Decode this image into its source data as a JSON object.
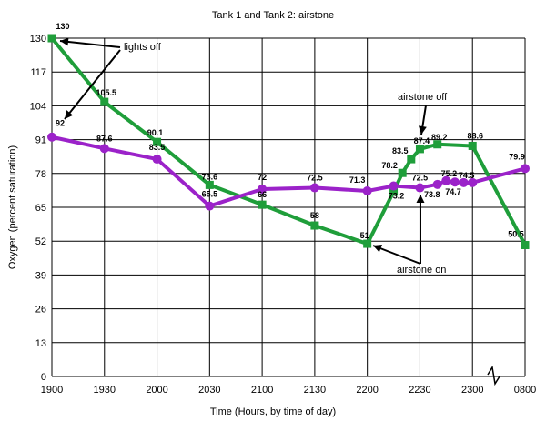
{
  "chart_data": {
    "type": "line",
    "title": "Tank 1 and Tank 2: airstone",
    "xlabel": "Time (Hours, by time of day)",
    "ylabel": "Oxygen (percent saturation)",
    "ylim": [
      0,
      130
    ],
    "yticks": [
      "0",
      "13",
      "26",
      "39",
      "52",
      "65",
      "78",
      "91",
      "104",
      "117",
      "130"
    ],
    "xticks": [
      "1900",
      "1930",
      "2000",
      "2030",
      "2100",
      "2130",
      "2200",
      "2230",
      "2300",
      "0800"
    ],
    "grid": true,
    "axis_break": "between 2300 and 0800",
    "series": [
      {
        "color": "#1f9e3a",
        "marker": "square",
        "points": [
          {
            "x": "1900",
            "y": 130,
            "label": "130"
          },
          {
            "x": "1930",
            "y": 105.5,
            "label": "105.5"
          },
          {
            "x": "2000",
            "y": 90.1,
            "label": "90.1"
          },
          {
            "x": "2030",
            "y": 73.6,
            "label": "73.6"
          },
          {
            "x": "2100",
            "y": 66,
            "label": "66"
          },
          {
            "x": "2130",
            "y": 58,
            "label": "58"
          },
          {
            "x": "2200",
            "y": 51,
            "label": "51"
          },
          {
            "x": "2215",
            "y": 71,
            "label": ""
          },
          {
            "x": "2220",
            "y": 78.2,
            "label": "78.2"
          },
          {
            "x": "2225",
            "y": 83.5,
            "label": "83.5"
          },
          {
            "x": "2230",
            "y": 87.4,
            "label": "87.4"
          },
          {
            "x": "2240",
            "y": 89.2,
            "label": "89.2"
          },
          {
            "x": "2300",
            "y": 88.6,
            "label": "88.6"
          },
          {
            "x": "0800",
            "y": 50.5,
            "label": "50.5"
          }
        ]
      },
      {
        "color": "#9b22c9",
        "marker": "circle",
        "points": [
          {
            "x": "1900",
            "y": 92,
            "label": "92"
          },
          {
            "x": "1930",
            "y": 87.6,
            "label": "87.6"
          },
          {
            "x": "2000",
            "y": 83.5,
            "label": "83.5"
          },
          {
            "x": "2030",
            "y": 65.5,
            "label": "65.5"
          },
          {
            "x": "2100",
            "y": 72,
            "label": "72"
          },
          {
            "x": "2130",
            "y": 72.5,
            "label": "72.5"
          },
          {
            "x": "2200",
            "y": 71.3,
            "label": "71.3"
          },
          {
            "x": "2215",
            "y": 73.2,
            "label": "73.2"
          },
          {
            "x": "2230",
            "y": 72.5,
            "label": "72.5"
          },
          {
            "x": "2240",
            "y": 73.8,
            "label": "73.8"
          },
          {
            "x": "2245",
            "y": 75.2,
            "label": "75.2"
          },
          {
            "x": "2250",
            "y": 74.7,
            "label": "74.7"
          },
          {
            "x": "2255",
            "y": 74.5,
            "label": "74.5"
          },
          {
            "x": "2300",
            "y": 74.5,
            "label": ""
          },
          {
            "x": "0800",
            "y": 79.9,
            "label": "79.9"
          }
        ]
      }
    ],
    "annotations": [
      {
        "text": "lights off"
      },
      {
        "text": "airstone off"
      },
      {
        "text": "airstone on"
      }
    ]
  }
}
